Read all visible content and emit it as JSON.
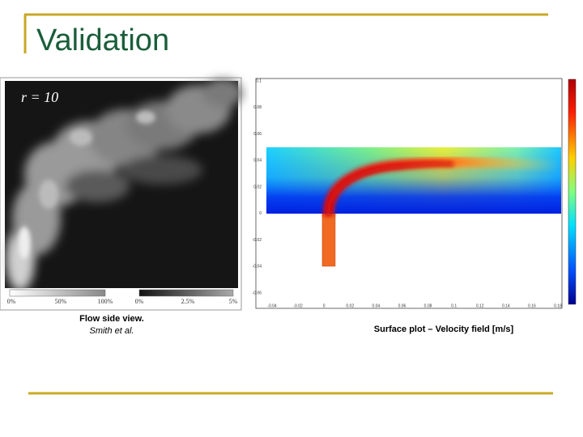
{
  "header": {
    "title": "Validation"
  },
  "figures": [
    {
      "image_label": "r = 10",
      "scale_labels": [
        "0%",
        "50%",
        "100%",
        "0%",
        "2.5%",
        "5%"
      ],
      "caption": "Flow side view.",
      "credit": "Smith et al."
    },
    {
      "y_axis_labels": [
        "0.1",
        "0.08",
        "0.06",
        "0.04",
        "0.02",
        "0",
        "-0.02",
        "-0.04",
        "-0.06"
      ],
      "x_axis_labels": [
        "-0.04",
        "-0.02",
        "0",
        "0.02",
        "0.04",
        "0.06",
        "0.08",
        "0.1",
        "0.12",
        "0.14",
        "0.16",
        "0.18"
      ],
      "caption": "Surface plot – Velocity field [m/s]"
    }
  ]
}
